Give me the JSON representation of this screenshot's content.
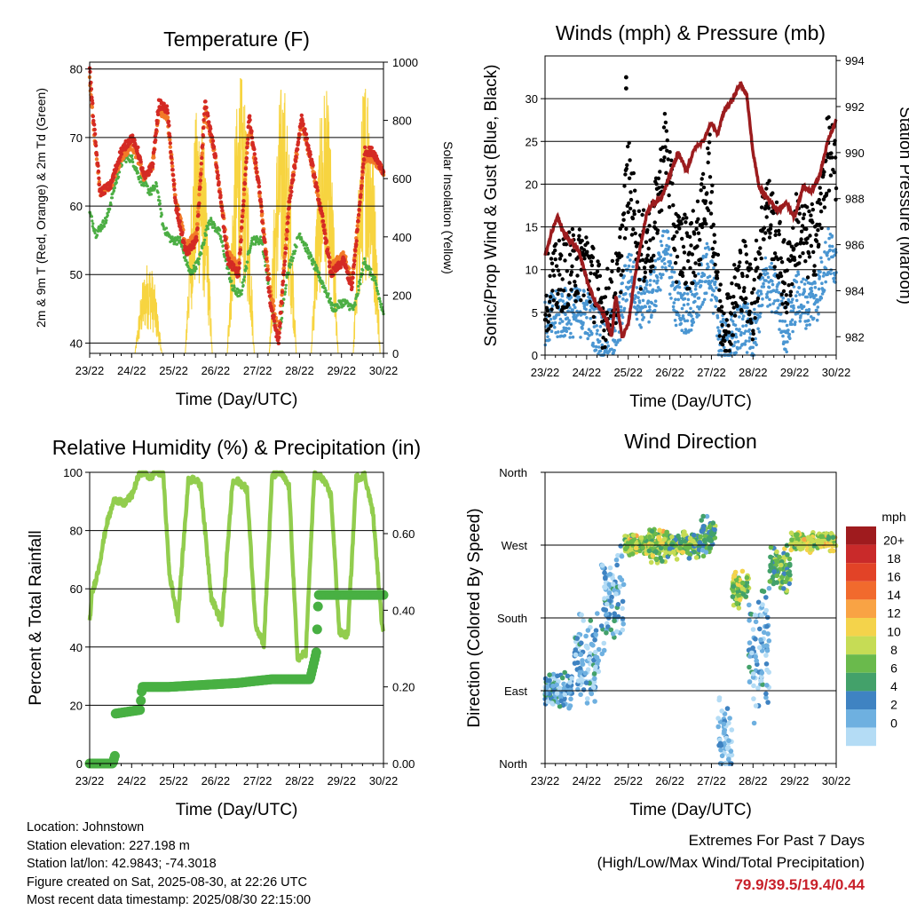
{
  "x_ticks": [
    "23/22",
    "24/22",
    "25/22",
    "26/22",
    "27/22",
    "28/22",
    "29/22",
    "30/22"
  ],
  "x_label": "Time (Day/UTC)",
  "chart_data": [
    {
      "id": "temperature",
      "type": "line",
      "title": "Temperature (F)",
      "xlabel": "Time (Day/UTC)",
      "ylabel": "2m & 9m T (Red, Orange) & 2m Td (Green)",
      "ylabel_right": "Solar Insolation (Yellow)",
      "ylim": [
        38.5,
        81
      ],
      "yticks": [
        40,
        50,
        60,
        70,
        80
      ],
      "y2lim": [
        0,
        1000
      ],
      "y2ticks": [
        0,
        200,
        400,
        600,
        800,
        1000
      ],
      "grid": "horizontal",
      "series": [
        {
          "name": "2m T",
          "color": "#d42a24",
          "x": [
            0,
            0.1,
            0.25,
            0.5,
            0.75,
            1.0,
            1.15,
            1.3,
            1.5,
            1.65,
            1.85,
            2.05,
            2.3,
            2.55,
            2.75,
            3.0,
            3.3,
            3.55,
            3.8,
            4.05,
            4.3,
            4.5,
            4.75,
            5.05,
            5.3,
            5.55,
            5.75,
            6.05,
            6.25,
            6.55,
            6.75,
            7.0
          ],
          "y": [
            80,
            72,
            62,
            63,
            68,
            70,
            68,
            64,
            66,
            75,
            74,
            60,
            53,
            55,
            75,
            67,
            52,
            50,
            73,
            62,
            46,
            40,
            60,
            73,
            66,
            58,
            50,
            52,
            48,
            68,
            68,
            65
          ]
        },
        {
          "name": "9m T",
          "color": "#f27a28",
          "x": [
            0,
            0.1,
            0.25,
            0.5,
            0.75,
            1.0,
            1.15,
            1.3,
            1.5,
            1.65,
            1.85,
            2.05,
            2.3,
            2.55,
            2.75,
            3.0,
            3.3,
            3.55,
            3.8,
            4.05,
            4.3,
            4.5,
            4.75,
            5.05,
            5.3,
            5.55,
            5.75,
            6.05,
            6.25,
            6.55,
            6.75,
            7.0
          ],
          "y": [
            79,
            71,
            62,
            63,
            67,
            69,
            67,
            64,
            66,
            74,
            73,
            61,
            54,
            56,
            74,
            67,
            53,
            51,
            72,
            62,
            48,
            41,
            61,
            72,
            66,
            58,
            51,
            53,
            49,
            67,
            67,
            65
          ]
        },
        {
          "name": "2m Td",
          "color": "#4cae44",
          "x": [
            0,
            0.15,
            0.4,
            0.6,
            0.8,
            1.0,
            1.2,
            1.45,
            1.6,
            1.75,
            1.95,
            2.15,
            2.4,
            2.6,
            2.85,
            3.1,
            3.4,
            3.6,
            3.85,
            4.1,
            4.35,
            4.5,
            4.7,
            5.0,
            5.3,
            5.6,
            5.8,
            6.05,
            6.3,
            6.55,
            6.8,
            7.0
          ],
          "y": [
            59,
            56,
            58,
            63,
            67,
            67,
            64,
            62,
            63,
            57,
            55,
            55,
            50,
            52,
            58,
            56,
            48,
            47,
            55,
            55,
            45,
            40,
            50,
            56,
            52,
            48,
            45,
            46,
            45,
            52,
            49,
            44
          ]
        },
        {
          "name": "Solar Insolation",
          "color": "#f7d440",
          "axis": "right",
          "peaks": [
            {
              "x": 1.4,
              "v": 320
            },
            {
              "x": 2.6,
              "v": 880
            },
            {
              "x": 3.6,
              "v": 960
            },
            {
              "x": 4.6,
              "v": 950
            },
            {
              "x": 5.6,
              "v": 930
            },
            {
              "x": 6.6,
              "v": 1000
            }
          ]
        }
      ]
    },
    {
      "id": "winds",
      "type": "scatter",
      "title": "Winds (mph) & Pressure (mb)",
      "xlabel": "Time (Day/UTC)",
      "ylabel": "Sonic/Prop Wind & Gust (Blue, Black)",
      "ylabel_right": "Station Pressure (Maroon)",
      "ylim": [
        0,
        35
      ],
      "yticks": [
        0,
        5,
        10,
        15,
        20,
        25,
        30
      ],
      "y2lim": [
        981.2,
        994.2
      ],
      "y2ticks": [
        982,
        984,
        986,
        988,
        990,
        992,
        994
      ],
      "grid": "horizontal",
      "series": [
        {
          "name": "Gust",
          "color": "#000000",
          "x": [
            0,
            0.5,
            1.0,
            1.4,
            1.75,
            2.0,
            2.3,
            2.6,
            2.9,
            3.15,
            3.5,
            3.7,
            3.95,
            4.2,
            4.4,
            4.75,
            5.0,
            5.3,
            5.55,
            5.8,
            6.05,
            6.3,
            6.55,
            6.8,
            7.0
          ],
          "y": [
            7,
            10,
            11,
            5,
            8,
            21,
            12,
            14,
            25,
            13,
            12,
            14,
            22,
            5,
            4,
            10,
            6,
            18,
            14,
            8,
            15,
            13,
            14,
            24,
            22
          ],
          "outliers": [
            {
              "x": 1.95,
              "y": 32.5
            },
            {
              "x": 1.95,
              "y": 31.2
            }
          ]
        },
        {
          "name": "Wind",
          "color": "#4a96d2",
          "x": [
            0,
            0.5,
            1.0,
            1.4,
            1.75,
            2.0,
            2.3,
            2.6,
            2.9,
            3.15,
            3.5,
            3.7,
            3.95,
            4.2,
            4.4,
            4.75,
            5.0,
            5.3,
            5.55,
            5.8,
            6.05,
            6.3,
            6.55,
            6.8,
            7.0
          ],
          "y": [
            4,
            5,
            5,
            2,
            3,
            10,
            6,
            7,
            13,
            6,
            5,
            7,
            11,
            2,
            1,
            4,
            2,
            9,
            7,
            3,
            7,
            6,
            7,
            12,
            11
          ]
        },
        {
          "name": "Station Pressure",
          "color": "#9c1c1e",
          "axis": "right",
          "x": [
            0,
            0.15,
            0.3,
            0.45,
            0.6,
            0.8,
            1.0,
            1.2,
            1.4,
            1.5,
            1.6,
            1.7,
            1.85,
            2.0,
            2.15,
            2.3,
            2.45,
            2.6,
            2.8,
            3.0,
            3.2,
            3.4,
            3.6,
            3.8,
            4.0,
            4.15,
            4.3,
            4.5,
            4.7,
            4.85,
            5.0,
            5.15,
            5.35,
            5.6,
            5.8,
            6.0,
            6.2,
            6.4,
            6.6,
            6.8,
            7.0
          ],
          "y": [
            985.5,
            986.5,
            987.2,
            986.5,
            986.2,
            985.8,
            984.5,
            983.5,
            983.0,
            982.6,
            982.0,
            983.8,
            982.0,
            982.5,
            984.5,
            986.0,
            987.4,
            987.8,
            988.0,
            989.0,
            990.0,
            989.2,
            990.2,
            990.5,
            991.3,
            990.8,
            991.8,
            992.3,
            993.0,
            992.5,
            990.0,
            988.5,
            988.0,
            987.5,
            987.8,
            987.2,
            988.5,
            988.3,
            989.0,
            990.5,
            991.4
          ]
        }
      ]
    },
    {
      "id": "humidity",
      "type": "line",
      "title": "Relative Humidity (%) & Precipitation (in)",
      "xlabel": "Time (Day/UTC)",
      "ylabel": "Percent & Total Rainfall",
      "ylim": [
        0,
        100
      ],
      "yticks": [
        0,
        20,
        40,
        60,
        80,
        100
      ],
      "y2lim": [
        0,
        0.76
      ],
      "y2ticks": [
        "0.00",
        "0.20",
        "0.40",
        "0.60"
      ],
      "grid": "horizontal",
      "series": [
        {
          "name": "Relative Humidity",
          "color": "#92cd4e",
          "x": [
            0,
            0.05,
            0.2,
            0.4,
            0.6,
            0.8,
            1.0,
            1.2,
            1.3,
            1.45,
            1.55,
            1.75,
            1.9,
            2.1,
            2.35,
            2.5,
            2.65,
            2.9,
            3.15,
            3.4,
            3.55,
            3.75,
            3.95,
            4.15,
            4.35,
            4.55,
            4.75,
            4.95,
            5.15,
            5.35,
            5.55,
            5.75,
            5.95,
            6.15,
            6.35,
            6.55,
            6.75,
            6.95,
            7.0
          ],
          "y": [
            48,
            58,
            66,
            82,
            91,
            89,
            92,
            100,
            100,
            98,
            100,
            100,
            65,
            50,
            97,
            98,
            95,
            57,
            48,
            96,
            97,
            94,
            48,
            41,
            99,
            100,
            95,
            36,
            38,
            99,
            98,
            92,
            45,
            44,
            98,
            99,
            86,
            50,
            46
          ]
        },
        {
          "name": "Total Precipitation",
          "color": "#48b043",
          "axis": "right",
          "x": [
            0,
            0.55,
            0.6,
            0.6,
            1.2,
            1.25,
            1.9,
            3.5,
            4.35,
            5.25,
            5.4,
            5.45,
            7.0
          ],
          "y": [
            0,
            0,
            0.02,
            0.13,
            0.14,
            0.2,
            0.2,
            0.21,
            0.22,
            0.22,
            0.29,
            0.44,
            0.44
          ]
        }
      ]
    },
    {
      "id": "direction",
      "type": "scatter",
      "title": "Wind Direction",
      "xlabel": "Time (Day/UTC)",
      "ylabel": "Direction (Colored By Speed)",
      "ylim": [
        0,
        360
      ],
      "yticks": [
        "North",
        "East",
        "South",
        "West",
        "North"
      ],
      "grid": "horizontal",
      "clusters": [
        {
          "x0": 0.0,
          "x1": 0.65,
          "dir": 90,
          "spread": 25,
          "speed": 4
        },
        {
          "x0": 0.7,
          "x1": 1.3,
          "dir": 130,
          "spread": 60,
          "speed": 3
        },
        {
          "x0": 1.35,
          "x1": 1.9,
          "dir": 200,
          "spread": 70,
          "speed": 3
        },
        {
          "x0": 1.9,
          "x1": 2.5,
          "dir": 270,
          "spread": 15,
          "speed": 10
        },
        {
          "x0": 2.5,
          "x1": 3.0,
          "dir": 270,
          "spread": 25,
          "speed": 10
        },
        {
          "x0": 3.0,
          "x1": 3.7,
          "dir": 270,
          "spread": 20,
          "speed": 9
        },
        {
          "x0": 3.7,
          "x1": 4.1,
          "dir": 280,
          "spread": 30,
          "speed": 7
        },
        {
          "x0": 4.15,
          "x1": 4.5,
          "dir": 30,
          "spread": 60,
          "speed": 2
        },
        {
          "x0": 4.5,
          "x1": 4.9,
          "dir": 220,
          "spread": 30,
          "speed": 10
        },
        {
          "x0": 4.9,
          "x1": 5.4,
          "dir": 140,
          "spread": 100,
          "speed": 3
        },
        {
          "x0": 5.4,
          "x1": 5.9,
          "dir": 240,
          "spread": 30,
          "speed": 8
        },
        {
          "x0": 5.9,
          "x1": 7.0,
          "dir": 275,
          "spread": 15,
          "speed": 11
        }
      ],
      "colorbar": {
        "title": "mph",
        "labels": [
          "20+",
          "18",
          "16",
          "14",
          "12",
          "10",
          "8",
          "6",
          "4",
          "2",
          "0"
        ],
        "colors": [
          "#9f1b1e",
          "#c92a2a",
          "#e24327",
          "#f16a2d",
          "#f9a344",
          "#f4d34b",
          "#c6dc55",
          "#6aba4c",
          "#43a16a",
          "#3f83c2",
          "#6eb0e0",
          "#b4dcf5"
        ]
      }
    }
  ],
  "info": {
    "location": "Location: Johnstown",
    "elevation": "Station elevation: 227.198 m",
    "latlon": "Station lat/lon: 42.9843; -74.3018",
    "created": "Figure created on Sat, 2025-08-30, at 22:26 UTC",
    "recent": "Most recent data timestamp: 2025/08/30 22:15:00"
  },
  "extremes": {
    "title": "Extremes For Past 7 Days",
    "subtitle": "(High/Low/Max Wind/Total Precipitation)",
    "values": "79.9/39.5/19.4/0.44"
  }
}
